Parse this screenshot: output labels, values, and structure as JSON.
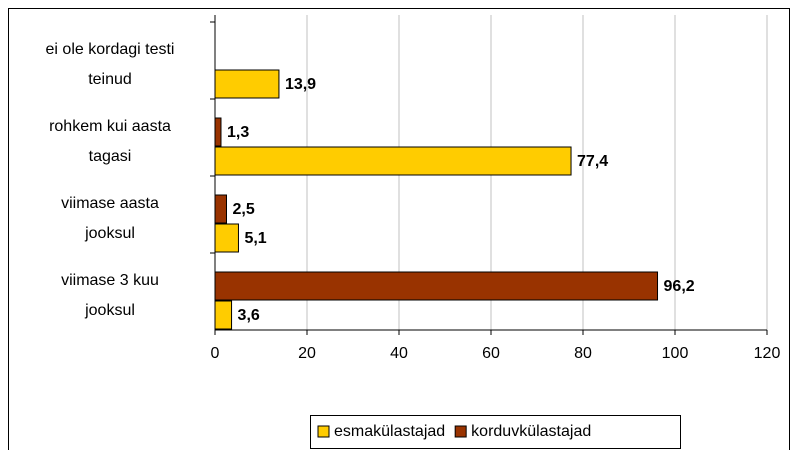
{
  "chart_data": {
    "type": "bar",
    "orientation": "horizontal",
    "categories": [
      "ei ole kordagi testi\nteinud",
      "rohkem kui aasta\ntagasi",
      "viimase aasta\njooksul",
      "viimase 3 kuu\njooksul"
    ],
    "series": [
      {
        "name": "esmakülastajad",
        "color": "#ffcc00",
        "values": [
          13.9,
          77.4,
          5.1,
          3.6
        ],
        "value_labels": [
          "13,9",
          "77,4",
          "5,1",
          "3,6"
        ]
      },
      {
        "name": "korduvkülastajad",
        "color": "#993300",
        "values": [
          null,
          1.3,
          2.5,
          96.2
        ],
        "value_labels": [
          null,
          "1,3",
          "2,5",
          "96,2"
        ]
      }
    ],
    "xlim": [
      0,
      120
    ],
    "xticks": [
      0,
      20,
      40,
      60,
      80,
      100,
      120
    ],
    "grid": true,
    "legend": "bottom"
  }
}
